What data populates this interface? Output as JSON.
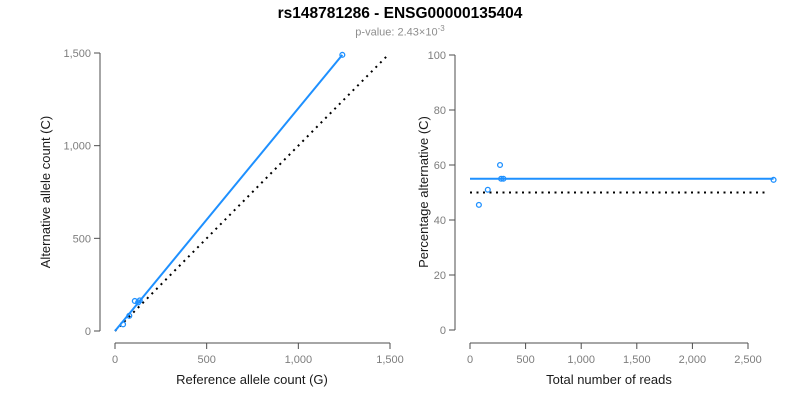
{
  "header": {
    "title": "rs148781286 - ENSG00000135404",
    "subtitle_prefix": "p-value: 2.43×10",
    "subtitle_exponent": "-3"
  },
  "colors": {
    "accent_blue": "#1E90FF",
    "dotted_black": "#000000",
    "axis_line": "#4d4d4d",
    "tick_label": "#7d7d7d",
    "axis_title": "#1a1a1a",
    "subtitle_gray": "#8e8e8e"
  },
  "chart_data": [
    {
      "type": "scatter",
      "title": "",
      "xlabel": "Reference allele count (G)",
      "ylabel": "Alternative allele count (C)",
      "xlim": [
        0,
        1500
      ],
      "ylim": [
        0,
        1500
      ],
      "xticks": [
        0,
        500,
        1000,
        1500
      ],
      "xtick_labels": [
        "0",
        "500",
        "1,000",
        "1,500"
      ],
      "yticks": [
        0,
        500,
        1000,
        1500
      ],
      "ytick_labels": [
        "0",
        "500",
        "1,000",
        "1,500"
      ],
      "grid": false,
      "legend": null,
      "marker": "open-circle",
      "points": [
        [
          44,
          36
        ],
        [
          78,
          82
        ],
        [
          108,
          162
        ],
        [
          126,
          154
        ],
        [
          135,
          165
        ],
        [
          1240,
          1490
        ]
      ],
      "lines": [
        {
          "name": "identity-line",
          "x1": 0,
          "y1": 0,
          "x2": 1495,
          "y2": 1495,
          "color": "#000000",
          "style": "dotted"
        },
        {
          "name": "fit-line",
          "x1": 0,
          "y1": 0,
          "x2": 1240,
          "y2": 1490,
          "color": "#1E90FF",
          "style": "solid"
        }
      ]
    },
    {
      "type": "scatter",
      "title": "",
      "xlabel": "Total number of reads",
      "ylabel": "Percentage alternative (C)",
      "xlim": [
        0,
        2780
      ],
      "ylim": [
        0,
        100
      ],
      "xticks": [
        0,
        500,
        1000,
        1500,
        2000,
        2500
      ],
      "xtick_labels": [
        "0",
        "500",
        "1,000",
        "1,500",
        "2,000",
        "2,500"
      ],
      "yticks": [
        0,
        20,
        40,
        60,
        80,
        100
      ],
      "ytick_labels": [
        "0",
        "20",
        "40",
        "60",
        "80",
        "100"
      ],
      "grid": false,
      "legend": null,
      "marker": "open-circle",
      "points": [
        [
          80,
          45.5
        ],
        [
          160,
          51
        ],
        [
          270,
          60
        ],
        [
          280,
          55
        ],
        [
          300,
          55
        ],
        [
          2730,
          54.6
        ]
      ],
      "lines": [
        {
          "name": "null-expectation-line",
          "x1": 0,
          "y1": 50,
          "x2": 2680,
          "y2": 50,
          "color": "#000000",
          "style": "dotted"
        },
        {
          "name": "mean-percentage-line",
          "x1": 0,
          "y1": 55,
          "x2": 2730,
          "y2": 55,
          "color": "#1E90FF",
          "style": "solid"
        }
      ]
    }
  ]
}
